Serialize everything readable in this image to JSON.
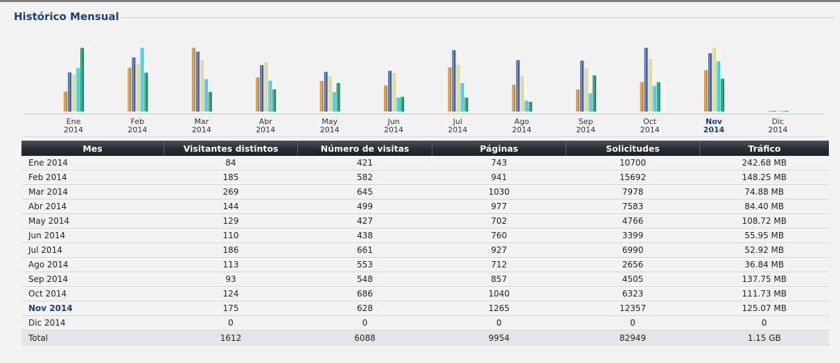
{
  "section": {
    "title": "Histórico Mensual"
  },
  "colors": {
    "visitors": "#d08a2c",
    "visits": "#3d5fb0",
    "pages": "#e2d488",
    "hits": "#3fc6d8",
    "bandwidth": "#1a8a5e",
    "current_month": "#1e3f7a",
    "table_header": "#2a2d33"
  },
  "table": {
    "headers": [
      "Mes",
      "Visitantes distintos",
      "Número de visitas",
      "Páginas",
      "Solicitudes",
      "Tráfico"
    ],
    "rows": [
      {
        "mes": "Ene 2014",
        "visitantes": "84",
        "visitas": "421",
        "paginas": "743",
        "solicitudes": "10700",
        "trafico": "242.68 MB"
      },
      {
        "mes": "Feb 2014",
        "visitantes": "185",
        "visitas": "582",
        "paginas": "941",
        "solicitudes": "15692",
        "trafico": "148.25 MB"
      },
      {
        "mes": "Mar 2014",
        "visitantes": "269",
        "visitas": "645",
        "paginas": "1030",
        "solicitudes": "7978",
        "trafico": "74.88 MB"
      },
      {
        "mes": "Abr 2014",
        "visitantes": "144",
        "visitas": "499",
        "paginas": "977",
        "solicitudes": "7583",
        "trafico": "84.40 MB"
      },
      {
        "mes": "May 2014",
        "visitantes": "129",
        "visitas": "427",
        "paginas": "702",
        "solicitudes": "4766",
        "trafico": "108.72 MB"
      },
      {
        "mes": "Jun 2014",
        "visitantes": "110",
        "visitas": "438",
        "paginas": "760",
        "solicitudes": "3399",
        "trafico": "55.95 MB"
      },
      {
        "mes": "Jul 2014",
        "visitantes": "186",
        "visitas": "661",
        "paginas": "927",
        "solicitudes": "6990",
        "trafico": "52.92 MB"
      },
      {
        "mes": "Ago 2014",
        "visitantes": "113",
        "visitas": "553",
        "paginas": "712",
        "solicitudes": "2656",
        "trafico": "36.84 MB"
      },
      {
        "mes": "Sep 2014",
        "visitantes": "93",
        "visitas": "548",
        "paginas": "857",
        "solicitudes": "4505",
        "trafico": "137.75 MB"
      },
      {
        "mes": "Oct 2014",
        "visitantes": "124",
        "visitas": "686",
        "paginas": "1040",
        "solicitudes": "6323",
        "trafico": "111.73 MB"
      },
      {
        "mes": "Nov 2014",
        "visitantes": "175",
        "visitas": "628",
        "paginas": "1265",
        "solicitudes": "12357",
        "trafico": "125.07 MB"
      },
      {
        "mes": "Dic 2014",
        "visitantes": "0",
        "visitas": "0",
        "paginas": "0",
        "solicitudes": "0",
        "trafico": "0"
      }
    ],
    "current_index": 10,
    "total": {
      "mes": "Total",
      "visitantes": "1612",
      "visitas": "6088",
      "paginas": "9954",
      "solicitudes": "82949",
      "trafico": "1.15 GB"
    }
  },
  "chart_data": {
    "type": "bar",
    "categories": [
      "Ene",
      "Feb",
      "Mar",
      "Abr",
      "May",
      "Jun",
      "Jul",
      "Ago",
      "Sep",
      "Oct",
      "Nov",
      "Dic"
    ],
    "category_years": [
      "2014",
      "2014",
      "2014",
      "2014",
      "2014",
      "2014",
      "2014",
      "2014",
      "2014",
      "2014",
      "2014",
      "2014"
    ],
    "highlight_index": 10,
    "series": [
      {
        "key": "visitors",
        "values": [
          84,
          185,
          269,
          144,
          129,
          110,
          186,
          113,
          93,
          124,
          175,
          0
        ]
      },
      {
        "key": "visits",
        "values": [
          421,
          582,
          645,
          499,
          427,
          438,
          661,
          553,
          548,
          686,
          628,
          0
        ]
      },
      {
        "key": "pages",
        "values": [
          743,
          941,
          1030,
          977,
          702,
          760,
          927,
          712,
          857,
          1040,
          1265,
          0
        ]
      },
      {
        "key": "hits",
        "values": [
          10700,
          15692,
          7978,
          7583,
          4766,
          3399,
          6990,
          2656,
          4505,
          6323,
          12357,
          0
        ]
      },
      {
        "key": "bandwidth",
        "values": [
          242.68,
          148.25,
          74.88,
          84.4,
          108.72,
          55.95,
          52.92,
          36.84,
          137.75,
          111.73,
          125.07,
          0
        ]
      }
    ],
    "grid": false,
    "legend": "none"
  }
}
